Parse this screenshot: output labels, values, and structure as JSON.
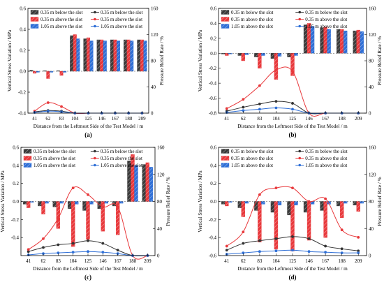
{
  "figure": {
    "x_axis_label": "Distance from the Leftmost Side of the Test Model / m",
    "y_left_label": "Vertical Stress Variation / MPa",
    "y_right_label": "Pressure Relief Rate / %"
  },
  "colors": {
    "bar_below": "#3a3a3a",
    "bar_035_above": "#e8383b",
    "bar_105_above": "#2f6fd6",
    "line_below": "#333333",
    "line_035_above": "#e8383b",
    "line_105_above": "#2f6fd6"
  },
  "chart_data": [
    {
      "panel": "(a)",
      "type": "bar",
      "categories": [
        "41",
        "62",
        "83",
        "104",
        "125",
        "146",
        "167",
        "188",
        "209"
      ],
      "left_axis": {
        "ylim": [
          -0.4,
          0.6
        ],
        "ticks": [
          "-0.4",
          "-0.2",
          "0.0",
          "0.2",
          "0.4",
          "0.6"
        ]
      },
      "right_axis": {
        "ylim": [
          0,
          160
        ],
        "ticks": [
          "0",
          "40",
          "80",
          "120",
          "160"
        ]
      },
      "legend": [
        "0.35 m below the slot",
        "0.35 m above the slot",
        "1.05 m above the slot",
        "0.35 m below the slot",
        "0.35 m above the slot",
        "1.05 m above the slot"
      ],
      "bar_series": [
        {
          "name": "0.35 m below the slot",
          "values": [
            0.01,
            0.005,
            0.005,
            0.34,
            0.31,
            0.3,
            0.3,
            0.3,
            0.3
          ]
        },
        {
          "name": "0.35 m above the slot",
          "values": [
            -0.02,
            -0.07,
            -0.04,
            0.35,
            0.32,
            0.3,
            0.3,
            0.3,
            0.3
          ]
        },
        {
          "name": "1.05 m above the slot",
          "values": [
            -0.01,
            -0.01,
            -0.01,
            0.31,
            0.29,
            0.29,
            0.29,
            0.29,
            0.29
          ]
        }
      ],
      "line_series": [
        {
          "name": "0.35 m below the slot",
          "values": [
            2,
            4,
            3,
            0,
            0,
            0,
            0,
            0,
            0
          ]
        },
        {
          "name": "0.35 m above the slot",
          "values": [
            3,
            16,
            10,
            0,
            0,
            0,
            0,
            0,
            0
          ]
        },
        {
          "name": "1.05 m above the slot",
          "values": [
            1,
            3,
            2,
            0,
            0,
            0,
            0,
            0,
            0
          ]
        }
      ]
    },
    {
      "panel": "(b)",
      "type": "bar",
      "categories": [
        "41",
        "62",
        "83",
        "104",
        "125",
        "146",
        "167",
        "188",
        "209"
      ],
      "left_axis": {
        "ylim": [
          -0.8,
          0.6
        ],
        "ticks": [
          "-0.8",
          "-0.6",
          "-0.4",
          "-0.2",
          "0.0",
          "0.2",
          "0.4",
          "0.6"
        ]
      },
      "right_axis": {
        "ylim": [
          0,
          160
        ],
        "ticks": [
          "0",
          "40",
          "80",
          "120",
          "160"
        ]
      },
      "legend": [
        "0.35 m below the slot",
        "0.35 m above the slot",
        "1.05 m above the slot",
        "0.35 m below the slot",
        "0.35 m above the slot",
        "1.05 m above the slot"
      ],
      "bar_series": [
        {
          "name": "0.35 m below the slot",
          "values": [
            -0.01,
            -0.03,
            -0.05,
            -0.07,
            -0.05,
            0.38,
            0.34,
            0.32,
            0.3
          ]
        },
        {
          "name": "0.35 m above the slot",
          "values": [
            -0.03,
            -0.1,
            -0.2,
            -0.35,
            -0.3,
            0.4,
            0.35,
            0.32,
            0.31
          ]
        },
        {
          "name": "1.05 m above the slot",
          "values": [
            -0.01,
            -0.02,
            -0.03,
            -0.04,
            -0.03,
            0.36,
            0.32,
            0.3,
            0.29
          ]
        }
      ],
      "line_series": [
        {
          "name": "0.35 m below the slot",
          "values": [
            3,
            9,
            14,
            18,
            15,
            0,
            0,
            0,
            0
          ]
        },
        {
          "name": "0.35 m above the slot",
          "values": [
            7,
            21,
            42,
            66,
            64,
            0,
            0,
            0,
            0
          ]
        },
        {
          "name": "1.05 m above the slot",
          "values": [
            1,
            4,
            6,
            8,
            6,
            0,
            0,
            0,
            0
          ]
        }
      ]
    },
    {
      "panel": "(c)",
      "type": "bar",
      "categories": [
        "41",
        "62",
        "83",
        "104",
        "125",
        "146",
        "167",
        "188",
        "209"
      ],
      "left_axis": {
        "ylim": [
          -0.6,
          0.6
        ],
        "ticks": [
          "-0.4",
          "-0.2",
          "0.0",
          "0.2",
          "0.4",
          "0.6"
        ]
      },
      "right_axis": {
        "ylim": [
          0,
          160
        ],
        "ticks": [
          "0",
          "40",
          "80",
          "120",
          "160"
        ]
      },
      "legend": [
        "0.35 m below the slot",
        "0.35 m above the slot",
        "1.05 m above the slot",
        "0.35 m below the slot",
        "0.35 m above the slot",
        "1.05 m above the slot"
      ],
      "bar_series": [
        {
          "name": "0.35 m below the slot",
          "values": [
            -0.03,
            -0.05,
            -0.06,
            -0.08,
            -0.1,
            -0.08,
            -0.05,
            0.45,
            0.41
          ]
        },
        {
          "name": "0.35 m above the slot",
          "values": [
            -0.07,
            -0.14,
            -0.3,
            -0.5,
            -0.42,
            -0.33,
            -0.37,
            0.52,
            0.43
          ]
        },
        {
          "name": "1.05 m above the slot",
          "values": [
            -0.01,
            -0.02,
            -0.02,
            -0.03,
            -0.03,
            -0.02,
            -0.02,
            0.4,
            0.38
          ]
        }
      ],
      "line_series": [
        {
          "name": "0.35 m below the slot",
          "values": [
            6,
            12,
            16,
            18,
            22,
            18,
            8,
            0,
            0
          ]
        },
        {
          "name": "0.35 m above the slot",
          "values": [
            9,
            25,
            55,
            100,
            90,
            72,
            72,
            0,
            0
          ]
        },
        {
          "name": "1.05 m above the slot",
          "values": [
            1,
            3,
            4,
            5,
            6,
            5,
            3,
            0,
            0
          ]
        }
      ]
    },
    {
      "panel": "(d)",
      "type": "bar",
      "categories": [
        "41",
        "62",
        "83",
        "104",
        "125",
        "146",
        "167",
        "188",
        "209"
      ],
      "left_axis": {
        "ylim": [
          -0.6,
          0.6
        ],
        "ticks": [
          "-0.6",
          "-0.4",
          "-0.2",
          "0.0",
          "0.2",
          "0.4",
          "0.6"
        ]
      },
      "right_axis": {
        "ylim": [
          0,
          160
        ],
        "ticks": [
          "0",
          "40",
          "80",
          "120",
          "160"
        ]
      },
      "legend": [
        "0.35 m below the slot",
        "0.35 m above the slot",
        "1.05 m above the slot",
        "0.35 m below the slot",
        "0.35 m above the slot",
        "1.05 m above the slot"
      ],
      "bar_series": [
        {
          "name": "0.35 m below the slot",
          "values": [
            -0.03,
            -0.07,
            -0.1,
            -0.12,
            -0.15,
            -0.12,
            -0.1,
            -0.05,
            -0.04
          ]
        },
        {
          "name": "0.35 m above the slot",
          "values": [
            -0.05,
            -0.17,
            -0.45,
            -0.53,
            -0.55,
            -0.43,
            -0.4,
            -0.18,
            -0.11
          ]
        },
        {
          "name": "1.05 m above the slot",
          "values": [
            -0.01,
            -0.02,
            -0.03,
            -0.04,
            -0.04,
            -0.03,
            -0.03,
            -0.02,
            -0.02
          ]
        }
      ],
      "line_series": [
        {
          "name": "0.35 m below the slot",
          "values": [
            8,
            18,
            22,
            25,
            28,
            25,
            14,
            10,
            7
          ]
        },
        {
          "name": "0.35 m above the slot",
          "values": [
            14,
            35,
            90,
            100,
            100,
            80,
            84,
            38,
            27
          ]
        },
        {
          "name": "1.05 m above the slot",
          "values": [
            2,
            4,
            6,
            7,
            8,
            6,
            5,
            4,
            4
          ]
        }
      ]
    }
  ]
}
